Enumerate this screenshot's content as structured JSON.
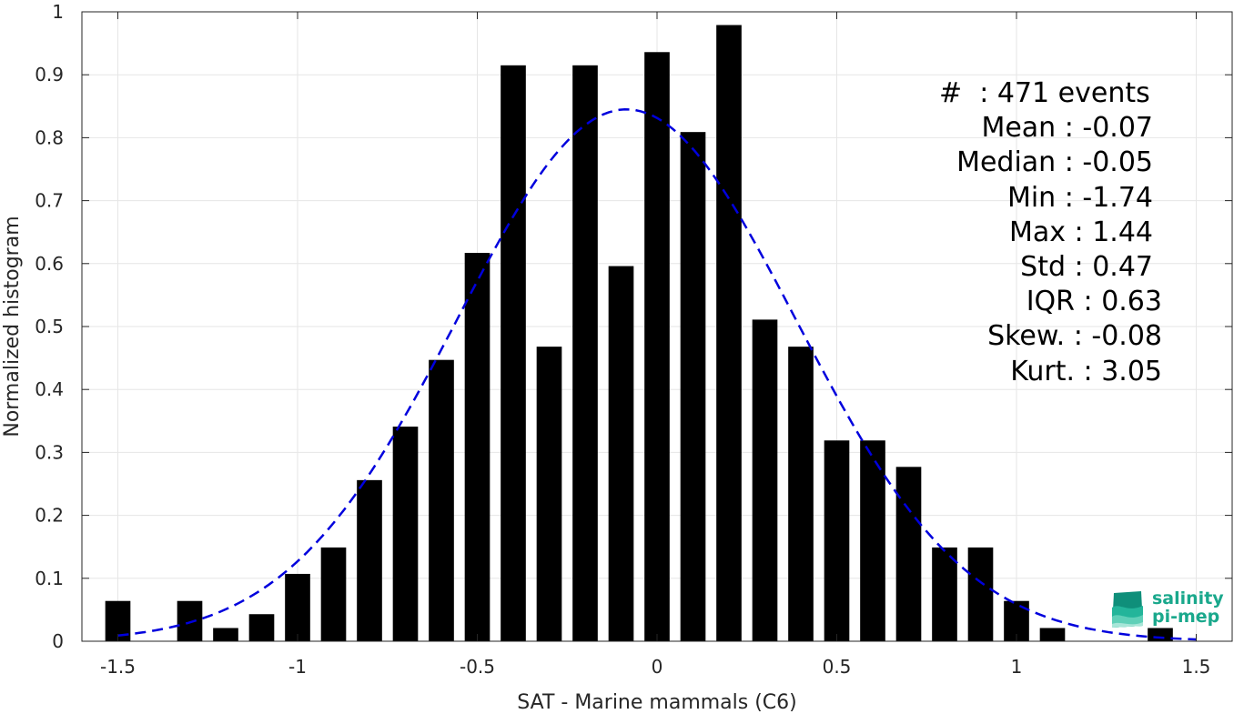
{
  "chart_data": {
    "type": "bar",
    "xlabel": "SAT - Marine mammals (C6)",
    "ylabel": "Normalized histogram",
    "xlim": [
      -1.6,
      1.6
    ],
    "ylim": [
      0,
      1
    ],
    "xticks": [
      -1.5,
      -1,
      -0.5,
      0,
      0.5,
      1,
      1.5
    ],
    "xtick_labels": [
      "-1.5",
      "-1",
      "-0.5",
      "0",
      "0.5",
      "1",
      "1.5"
    ],
    "yticks": [
      0,
      0.1,
      0.2,
      0.3,
      0.4,
      0.5,
      0.6,
      0.7,
      0.8,
      0.9,
      1
    ],
    "ytick_labels": [
      "0",
      "0.1",
      "0.2",
      "0.3",
      "0.4",
      "0.5",
      "0.6",
      "0.7",
      "0.8",
      "0.9",
      "1"
    ],
    "grid": true,
    "bar_color": "#000000",
    "bar_centers": [
      -1.5,
      -1.3,
      -1.2,
      -1.1,
      -1.0,
      -0.9,
      -0.8,
      -0.7,
      -0.6,
      -0.5,
      -0.4,
      -0.3,
      -0.2,
      -0.1,
      0.0,
      0.1,
      0.2,
      0.3,
      0.4,
      0.5,
      0.6,
      0.7,
      0.8,
      0.9,
      1.0,
      1.1,
      1.4
    ],
    "values": [
      0.064,
      0.064,
      0.021,
      0.043,
      0.107,
      0.149,
      0.256,
      0.341,
      0.447,
      0.617,
      0.915,
      0.468,
      0.915,
      0.596,
      0.936,
      0.809,
      0.979,
      0.511,
      0.468,
      0.319,
      0.319,
      0.277,
      0.149,
      0.149,
      0.064,
      0.021,
      0.021
    ],
    "bar_width": 0.07,
    "fit_curve": {
      "type": "gaussian",
      "color": "#0000dd",
      "style": "dashed",
      "mean": -0.085,
      "std": 0.47,
      "peak": 0.845,
      "x_range": [
        -1.5,
        1.5
      ]
    }
  },
  "stats": [
    "#  : 471 events",
    "Mean : -0.07",
    "Median : -0.05",
    "Min : -1.74",
    "Max : 1.44",
    "Std : 0.47",
    "IQR : 0.63",
    "Skew. : -0.08",
    "Kurt. : 3.05"
  ],
  "logo": {
    "line1": "salinity",
    "line2": "pi-mep",
    "color": "#1aa88c"
  }
}
